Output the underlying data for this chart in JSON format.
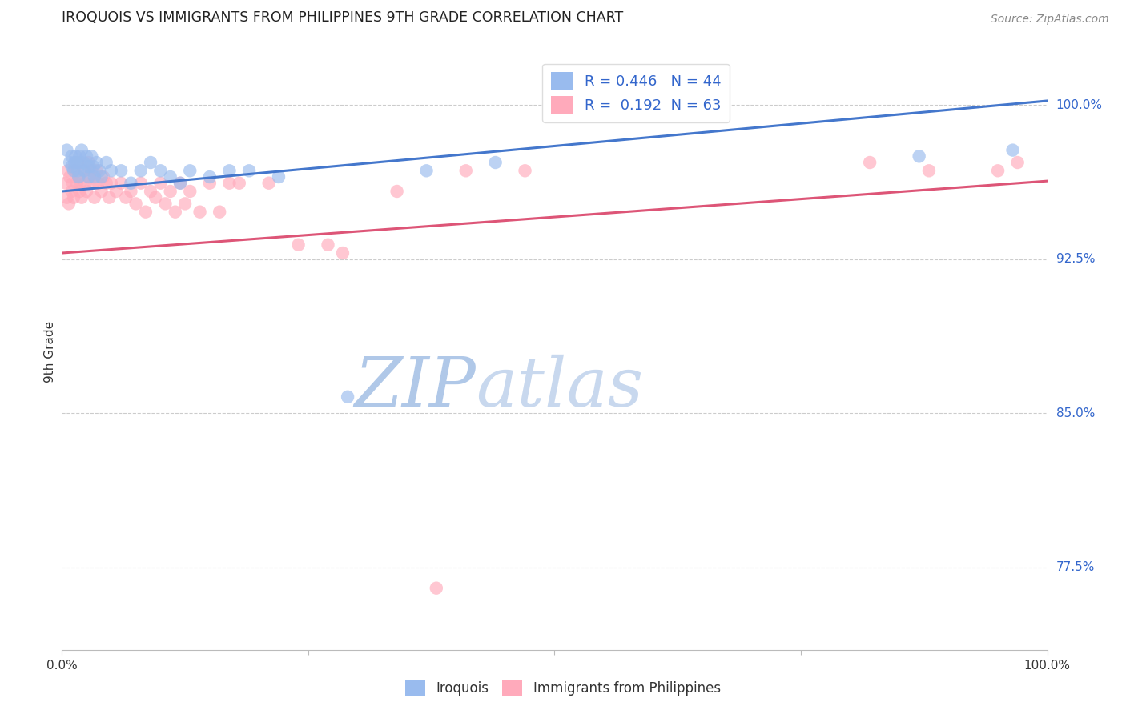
{
  "title": "IROQUOIS VS IMMIGRANTS FROM PHILIPPINES 9TH GRADE CORRELATION CHART",
  "source": "Source: ZipAtlas.com",
  "ylabel": "9th Grade",
  "xlim": [
    0.0,
    1.0
  ],
  "ylim": [
    0.735,
    1.025
  ],
  "x_ticks": [
    0.0,
    0.25,
    0.5,
    0.75,
    1.0
  ],
  "x_tick_labels": [
    "0.0%",
    "",
    "",
    "",
    "100.0%"
  ],
  "y_tick_positions": [
    0.775,
    0.85,
    0.925,
    1.0
  ],
  "y_tick_labels": [
    "77.5%",
    "85.0%",
    "92.5%",
    "100.0%"
  ],
  "grid_color": "#cccccc",
  "background_color": "#ffffff",
  "blue_scatter_color": "#99bbee",
  "pink_scatter_color": "#ffaabb",
  "blue_line_color": "#4477cc",
  "pink_line_color": "#dd5577",
  "legend_text_color": "#3366cc",
  "title_color": "#222222",
  "source_color": "#888888",
  "watermark_zi_color": "#b0c8e8",
  "watermark_atlas_color": "#c8d8ee",
  "legend_r_blue": "R = 0.446",
  "legend_n_blue": "N = 44",
  "legend_r_pink": "R =  0.192",
  "legend_n_pink": "N = 63",
  "blue_line_x0": 0.0,
  "blue_line_y0": 0.958,
  "blue_line_x1": 1.0,
  "blue_line_y1": 1.002,
  "pink_line_x0": 0.0,
  "pink_line_y0": 0.928,
  "pink_line_x1": 1.0,
  "pink_line_y1": 0.963,
  "blue_x": [
    0.005,
    0.008,
    0.01,
    0.01,
    0.012,
    0.013,
    0.014,
    0.015,
    0.016,
    0.017,
    0.018,
    0.019,
    0.02,
    0.022,
    0.023,
    0.025,
    0.026,
    0.027,
    0.028,
    0.03,
    0.032,
    0.033,
    0.035,
    0.038,
    0.04,
    0.045,
    0.05,
    0.06,
    0.07,
    0.08,
    0.09,
    0.1,
    0.11,
    0.12,
    0.13,
    0.15,
    0.17,
    0.19,
    0.22,
    0.29,
    0.37,
    0.44,
    0.87,
    0.965
  ],
  "blue_y": [
    0.978,
    0.972,
    0.975,
    0.97,
    0.968,
    0.972,
    0.975,
    0.972,
    0.968,
    0.965,
    0.975,
    0.972,
    0.978,
    0.972,
    0.968,
    0.975,
    0.97,
    0.965,
    0.97,
    0.975,
    0.97,
    0.965,
    0.972,
    0.968,
    0.965,
    0.972,
    0.968,
    0.968,
    0.962,
    0.968,
    0.972,
    0.968,
    0.965,
    0.962,
    0.968,
    0.965,
    0.968,
    0.968,
    0.965,
    0.858,
    0.968,
    0.972,
    0.975,
    0.978
  ],
  "pink_x": [
    0.004,
    0.005,
    0.006,
    0.007,
    0.008,
    0.01,
    0.011,
    0.012,
    0.013,
    0.015,
    0.016,
    0.017,
    0.018,
    0.019,
    0.02,
    0.022,
    0.024,
    0.025,
    0.027,
    0.028,
    0.03,
    0.032,
    0.033,
    0.035,
    0.037,
    0.04,
    0.042,
    0.045,
    0.048,
    0.05,
    0.055,
    0.06,
    0.065,
    0.07,
    0.075,
    0.08,
    0.085,
    0.09,
    0.095,
    0.1,
    0.105,
    0.11,
    0.115,
    0.12,
    0.125,
    0.13,
    0.14,
    0.15,
    0.16,
    0.17,
    0.18,
    0.21,
    0.24,
    0.27,
    0.285,
    0.34,
    0.38,
    0.41,
    0.47,
    0.82,
    0.88,
    0.95,
    0.97
  ],
  "pink_y": [
    0.962,
    0.955,
    0.968,
    0.952,
    0.965,
    0.958,
    0.962,
    0.955,
    0.968,
    0.962,
    0.972,
    0.965,
    0.958,
    0.962,
    0.955,
    0.968,
    0.962,
    0.958,
    0.972,
    0.965,
    0.968,
    0.962,
    0.955,
    0.968,
    0.962,
    0.958,
    0.965,
    0.962,
    0.955,
    0.962,
    0.958,
    0.962,
    0.955,
    0.958,
    0.952,
    0.962,
    0.948,
    0.958,
    0.955,
    0.962,
    0.952,
    0.958,
    0.948,
    0.962,
    0.952,
    0.958,
    0.948,
    0.962,
    0.948,
    0.962,
    0.962,
    0.962,
    0.932,
    0.932,
    0.928,
    0.958,
    0.765,
    0.968,
    0.968,
    0.972,
    0.968,
    0.968,
    0.972
  ]
}
